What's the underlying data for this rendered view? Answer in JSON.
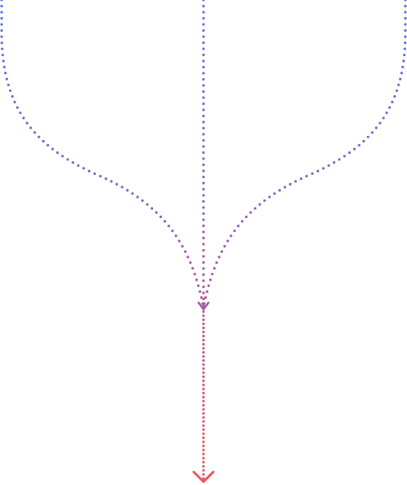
{
  "diagram": {
    "type": "merge-flow",
    "description_free": true,
    "colors": {
      "top": "#5b73e8",
      "middle": "#9a5fa8",
      "bottom": "#e8555f",
      "background": "#ffffff"
    },
    "paths": [
      {
        "id": "left-branch",
        "shape": "curve"
      },
      {
        "id": "center-branch",
        "shape": "straight"
      },
      {
        "id": "right-branch",
        "shape": "curve"
      },
      {
        "id": "merged-stem",
        "shape": "straight"
      }
    ],
    "line_style": "dotted",
    "end_marker": "chevron-down-arrow"
  }
}
